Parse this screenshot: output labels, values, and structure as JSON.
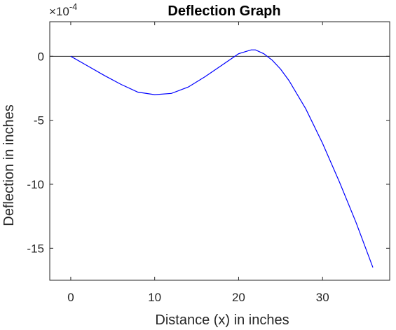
{
  "chart_data": {
    "type": "line",
    "title": "Deflection Graph",
    "xlabel": "Distance (x) in inches",
    "ylabel": "Deflection in inches",
    "y_multiplier_base": "×10",
    "y_multiplier_exp": "-4",
    "xlim": [
      -2.5,
      38
    ],
    "ylim": [
      -17.5,
      2.7
    ],
    "xticks": [
      0,
      10,
      20,
      30
    ],
    "yticks": [
      0,
      -5,
      -10,
      -15
    ],
    "grid": false,
    "legend": "none",
    "reference_line_y": 0,
    "line_color": "#0000ff",
    "reference_line_color": "#262626",
    "series": [
      {
        "x": [
          0,
          2,
          4,
          6,
          8,
          10,
          12,
          14,
          16,
          18,
          20,
          21.5,
          22,
          23,
          24,
          25,
          26,
          28,
          30,
          32,
          34,
          36
        ],
        "y": [
          0,
          -0.75,
          -1.5,
          -2.2,
          -2.8,
          -3.0,
          -2.9,
          -2.4,
          -1.6,
          -0.7,
          0.2,
          0.5,
          0.5,
          0.2,
          -0.3,
          -1.0,
          -1.9,
          -4.1,
          -6.8,
          -9.8,
          -13.0,
          -16.5
        ]
      }
    ]
  }
}
